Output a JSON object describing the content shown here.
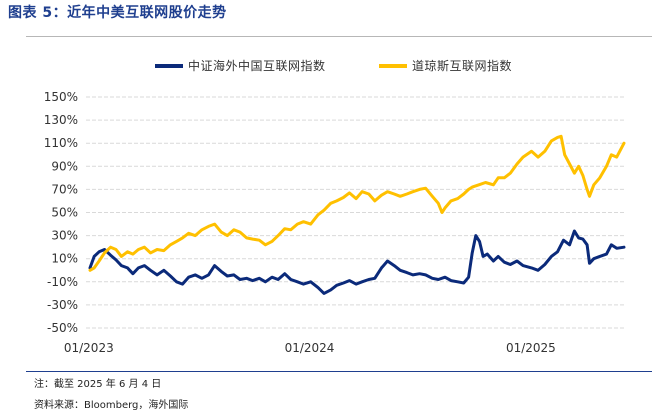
{
  "header": {
    "title": "图表 5：近年中美互联网股价走势"
  },
  "footer": {
    "note": "注：截至 2025 年 6 月 4 日",
    "source": "资料来源：Bloomberg，海外国际"
  },
  "colors": {
    "series_1": "#0b2a7a",
    "series_2": "#ffc000",
    "grid": "#d9d9d9"
  },
  "chart_data": {
    "type": "line",
    "legend_position": "top",
    "grid": true,
    "x_ticks": [
      "01/2023",
      "01/2024",
      "01/2025"
    ],
    "x_range": [
      "2023-01-03",
      "2025-06-04"
    ],
    "ylim": [
      -50,
      150
    ],
    "y_ticks": [
      "150%",
      "130%",
      "110%",
      "90%",
      "70%",
      "50%",
      "30%",
      "10%",
      "-10%",
      "-30%",
      "-50%"
    ],
    "y_tick_values": [
      150,
      130,
      110,
      90,
      70,
      50,
      30,
      10,
      -10,
      -30,
      -50
    ],
    "series": [
      {
        "name": "中证海外中国互联网指数",
        "color": "#0b2a7a",
        "points": [
          [
            "2023-01-03",
            2
          ],
          [
            "2023-01-10",
            12
          ],
          [
            "2023-01-18",
            16
          ],
          [
            "2023-01-27",
            18
          ],
          [
            "2023-02-06",
            13
          ],
          [
            "2023-02-15",
            9
          ],
          [
            "2023-02-24",
            4
          ],
          [
            "2023-03-06",
            2
          ],
          [
            "2023-03-15",
            -3
          ],
          [
            "2023-03-24",
            2
          ],
          [
            "2023-04-03",
            4
          ],
          [
            "2023-04-13",
            0
          ],
          [
            "2023-04-24",
            -4
          ],
          [
            "2023-05-05",
            0
          ],
          [
            "2023-05-16",
            -5
          ],
          [
            "2023-05-26",
            -10
          ],
          [
            "2023-06-05",
            -12
          ],
          [
            "2023-06-15",
            -6
          ],
          [
            "2023-06-26",
            -4
          ],
          [
            "2023-07-07",
            -7
          ],
          [
            "2023-07-18",
            -4
          ],
          [
            "2023-07-28",
            4
          ],
          [
            "2023-08-08",
            -1
          ],
          [
            "2023-08-18",
            -5
          ],
          [
            "2023-08-29",
            -4
          ],
          [
            "2023-09-08",
            -8
          ],
          [
            "2023-09-19",
            -7
          ],
          [
            "2023-09-29",
            -9
          ],
          [
            "2023-10-10",
            -7
          ],
          [
            "2023-10-20",
            -10
          ],
          [
            "2023-10-31",
            -6
          ],
          [
            "2023-11-10",
            -8
          ],
          [
            "2023-11-21",
            -3
          ],
          [
            "2023-12-01",
            -8
          ],
          [
            "2023-12-12",
            -10
          ],
          [
            "2023-12-22",
            -12
          ],
          [
            "2024-01-03",
            -10
          ],
          [
            "2024-01-15",
            -15
          ],
          [
            "2024-01-25",
            -20
          ],
          [
            "2024-02-05",
            -17
          ],
          [
            "2024-02-15",
            -13
          ],
          [
            "2024-02-26",
            -11
          ],
          [
            "2024-03-07",
            -9
          ],
          [
            "2024-03-18",
            -12
          ],
          [
            "2024-03-28",
            -10
          ],
          [
            "2024-04-08",
            -8
          ],
          [
            "2024-04-18",
            -7
          ],
          [
            "2024-04-29",
            2
          ],
          [
            "2024-05-09",
            8
          ],
          [
            "2024-05-20",
            4
          ],
          [
            "2024-05-30",
            0
          ],
          [
            "2024-06-10",
            -2
          ],
          [
            "2024-06-20",
            -4
          ],
          [
            "2024-07-01",
            -3
          ],
          [
            "2024-07-11",
            -4
          ],
          [
            "2024-07-22",
            -7
          ],
          [
            "2024-08-01",
            -8
          ],
          [
            "2024-08-12",
            -6
          ],
          [
            "2024-08-22",
            -9
          ],
          [
            "2024-09-02",
            -10
          ],
          [
            "2024-09-12",
            -11
          ],
          [
            "2024-09-20",
            -6
          ],
          [
            "2024-09-26",
            15
          ],
          [
            "2024-10-02",
            30
          ],
          [
            "2024-10-08",
            25
          ],
          [
            "2024-10-14",
            12
          ],
          [
            "2024-10-21",
            14
          ],
          [
            "2024-10-31",
            8
          ],
          [
            "2024-11-08",
            12
          ],
          [
            "2024-11-18",
            7
          ],
          [
            "2024-11-28",
            5
          ],
          [
            "2024-12-09",
            8
          ],
          [
            "2024-12-19",
            4
          ],
          [
            "2025-01-02",
            2
          ],
          [
            "2025-01-13",
            0
          ],
          [
            "2025-01-24",
            5
          ],
          [
            "2025-02-04",
            12
          ],
          [
            "2025-02-14",
            16
          ],
          [
            "2025-02-24",
            26
          ],
          [
            "2025-03-06",
            22
          ],
          [
            "2025-03-14",
            34
          ],
          [
            "2025-03-21",
            28
          ],
          [
            "2025-03-28",
            27
          ],
          [
            "2025-04-04",
            22
          ],
          [
            "2025-04-08",
            6
          ],
          [
            "2025-04-15",
            10
          ],
          [
            "2025-04-25",
            12
          ],
          [
            "2025-05-06",
            14
          ],
          [
            "2025-05-14",
            22
          ],
          [
            "2025-05-23",
            19
          ],
          [
            "2025-06-04",
            20
          ]
        ]
      },
      {
        "name": "道琼斯互联网指数",
        "color": "#ffc000",
        "points": [
          [
            "2023-01-03",
            0
          ],
          [
            "2023-01-10",
            2
          ],
          [
            "2023-01-18",
            8
          ],
          [
            "2023-01-27",
            15
          ],
          [
            "2023-02-06",
            20
          ],
          [
            "2023-02-15",
            18
          ],
          [
            "2023-02-24",
            12
          ],
          [
            "2023-03-06",
            16
          ],
          [
            "2023-03-15",
            14
          ],
          [
            "2023-03-24",
            18
          ],
          [
            "2023-04-03",
            20
          ],
          [
            "2023-04-13",
            15
          ],
          [
            "2023-04-24",
            18
          ],
          [
            "2023-05-05",
            17
          ],
          [
            "2023-05-16",
            22
          ],
          [
            "2023-05-26",
            25
          ],
          [
            "2023-06-05",
            28
          ],
          [
            "2023-06-15",
            32
          ],
          [
            "2023-06-26",
            30
          ],
          [
            "2023-07-07",
            35
          ],
          [
            "2023-07-18",
            38
          ],
          [
            "2023-07-28",
            40
          ],
          [
            "2023-08-08",
            33
          ],
          [
            "2023-08-18",
            30
          ],
          [
            "2023-08-29",
            35
          ],
          [
            "2023-09-08",
            33
          ],
          [
            "2023-09-19",
            28
          ],
          [
            "2023-09-29",
            27
          ],
          [
            "2023-10-10",
            26
          ],
          [
            "2023-10-20",
            22
          ],
          [
            "2023-10-31",
            25
          ],
          [
            "2023-11-10",
            30
          ],
          [
            "2023-11-21",
            36
          ],
          [
            "2023-12-01",
            35
          ],
          [
            "2023-12-12",
            40
          ],
          [
            "2023-12-22",
            42
          ],
          [
            "2024-01-03",
            40
          ],
          [
            "2024-01-15",
            48
          ],
          [
            "2024-01-25",
            52
          ],
          [
            "2024-02-05",
            58
          ],
          [
            "2024-02-15",
            60
          ],
          [
            "2024-02-26",
            63
          ],
          [
            "2024-03-07",
            67
          ],
          [
            "2024-03-18",
            62
          ],
          [
            "2024-03-28",
            68
          ],
          [
            "2024-04-08",
            66
          ],
          [
            "2024-04-18",
            60
          ],
          [
            "2024-04-29",
            65
          ],
          [
            "2024-05-09",
            68
          ],
          [
            "2024-05-20",
            66
          ],
          [
            "2024-05-30",
            64
          ],
          [
            "2024-06-10",
            66
          ],
          [
            "2024-06-20",
            68
          ],
          [
            "2024-07-01",
            70
          ],
          [
            "2024-07-11",
            71
          ],
          [
            "2024-07-22",
            64
          ],
          [
            "2024-08-01",
            58
          ],
          [
            "2024-08-07",
            50
          ],
          [
            "2024-08-12",
            54
          ],
          [
            "2024-08-22",
            60
          ],
          [
            "2024-09-02",
            62
          ],
          [
            "2024-09-12",
            66
          ],
          [
            "2024-09-20",
            70
          ],
          [
            "2024-09-26",
            72
          ],
          [
            "2024-10-07",
            74
          ],
          [
            "2024-10-18",
            76
          ],
          [
            "2024-10-31",
            74
          ],
          [
            "2024-11-08",
            80
          ],
          [
            "2024-11-18",
            80
          ],
          [
            "2024-11-28",
            84
          ],
          [
            "2024-12-09",
            92
          ],
          [
            "2024-12-19",
            98
          ],
          [
            "2025-01-02",
            103
          ],
          [
            "2025-01-13",
            98
          ],
          [
            "2025-01-24",
            103
          ],
          [
            "2025-02-04",
            112
          ],
          [
            "2025-02-14",
            115
          ],
          [
            "2025-02-20",
            116
          ],
          [
            "2025-02-26",
            100
          ],
          [
            "2025-03-06",
            92
          ],
          [
            "2025-03-14",
            84
          ],
          [
            "2025-03-21",
            90
          ],
          [
            "2025-03-28",
            82
          ],
          [
            "2025-04-04",
            70
          ],
          [
            "2025-04-08",
            64
          ],
          [
            "2025-04-15",
            74
          ],
          [
            "2025-04-25",
            80
          ],
          [
            "2025-05-06",
            90
          ],
          [
            "2025-05-14",
            100
          ],
          [
            "2025-05-23",
            98
          ],
          [
            "2025-06-04",
            110
          ]
        ]
      }
    ]
  }
}
